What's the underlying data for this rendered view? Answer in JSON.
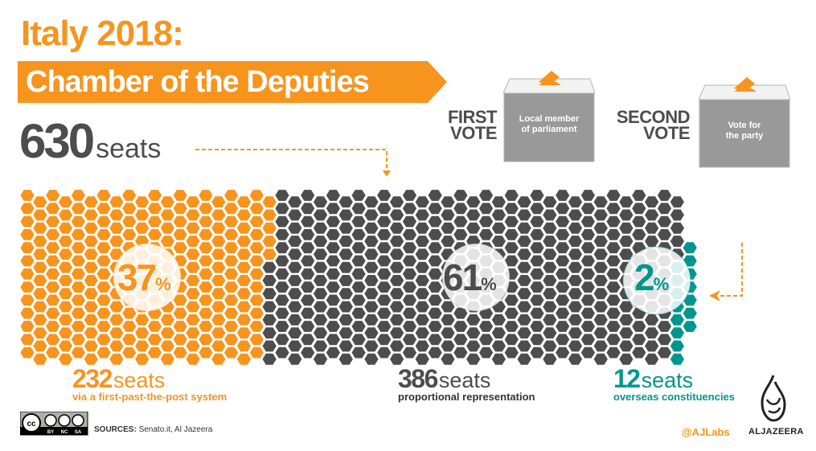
{
  "header": {
    "title": "Italy 2018:",
    "subtitle": "Chamber of the Deputies",
    "total_seats": "630",
    "seats_unit": "seats"
  },
  "votes": [
    {
      "label_line1": "FIRST",
      "label_line2": "VOTE",
      "box_line1": "Local member",
      "box_line2": "of parliament"
    },
    {
      "label_line1": "SECOND",
      "label_line2": "VOTE",
      "box_line1": "Vote for",
      "box_line2": "the party"
    }
  ],
  "groups": [
    {
      "percent": "37",
      "percent_sign": "%",
      "seats": "232",
      "unit": "seats",
      "description": "via a first-past-the-post system",
      "color": "#F7941E"
    },
    {
      "percent": "61",
      "percent_sign": "%",
      "seats": "386",
      "unit": "seats",
      "description": "proportional representation",
      "color": "#4D4D4D"
    },
    {
      "percent": "2",
      "percent_sign": "%",
      "seats": "12",
      "unit": "seats",
      "description": "overseas constituencies",
      "color": "#00968F"
    }
  ],
  "colors": {
    "orange": "#F7941E",
    "dark": "#4D4D4D",
    "teal": "#00968F",
    "ballot_box": "#999999",
    "ballot_lid": "#F2F2F2"
  },
  "footer": {
    "license_labels": [
      "BY",
      "NC",
      "SA"
    ],
    "license_badge": "cc",
    "sources_label": "SOURCES:",
    "sources_text": " Senato.it, Al Jazeera",
    "handle": "@AJLabs",
    "brand": "ALJAZEERA"
  },
  "chart_data": {
    "type": "waffle",
    "title": "Italy 2018: Chamber of the Deputies",
    "total": 630,
    "categories": [
      "First-past-the-post",
      "Proportional representation",
      "Overseas constituencies"
    ],
    "values": [
      232,
      386,
      12
    ],
    "percentages": [
      37,
      61,
      2
    ],
    "colors": [
      "#F7941E",
      "#4D4D4D",
      "#00968F"
    ]
  }
}
